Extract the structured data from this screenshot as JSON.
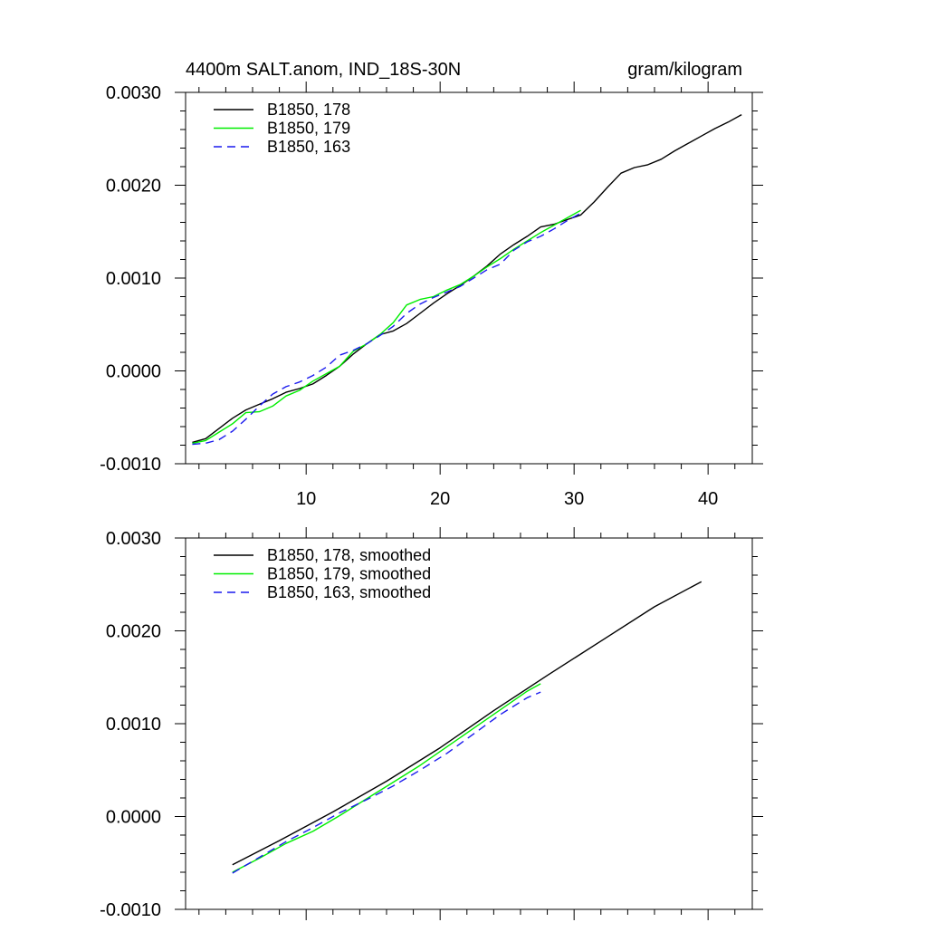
{
  "header": {
    "left_title": "4400m SALT.anom, IND_18S-30N",
    "right_title": "gram/kilogram"
  },
  "chart_data": [
    {
      "type": "line",
      "xlim": [
        1,
        43.3
      ],
      "ylim": [
        -0.001,
        0.003
      ],
      "x_major_ticks": [
        10,
        20,
        30,
        40
      ],
      "x_tick_labels": [
        "10",
        "20",
        "30",
        "40"
      ],
      "x_minor_step": 2,
      "y_major_ticks": [
        -0.001,
        0,
        0.001,
        0.002,
        0.003
      ],
      "y_tick_labels": [
        "-0.0010",
        "0.0000",
        "0.0010",
        "0.0020",
        "0.0030"
      ],
      "y_minor_step": 0.0002,
      "show_x_tick_labels": true,
      "legend_position": "top-left",
      "series": [
        {
          "name": "B1850, 178",
          "color": "#000000",
          "dash": "solid",
          "x": [
            1.5,
            2.5,
            3.5,
            4.5,
            5.5,
            6.5,
            7.5,
            8.5,
            9.5,
            10.5,
            11.5,
            12.5,
            13.5,
            14.5,
            15.5,
            16.5,
            17.5,
            18.5,
            19.5,
            20.5,
            21.5,
            22.5,
            23.5,
            24.5,
            25.5,
            26.5,
            27.5,
            28.5,
            29.5,
            30.5,
            31.5,
            32.5,
            33.5,
            34.5,
            35.5,
            36.5,
            37.5,
            38.5,
            39.5,
            40.5,
            41.5,
            42.5
          ],
          "values": [
            -0.00077,
            -0.00073,
            -0.00062,
            -0.00051,
            -0.00042,
            -0.00036,
            -0.0003,
            -0.00023,
            -0.00019,
            -0.00014,
            -5e-05,
            5e-05,
            0.00018,
            0.00029,
            0.00039,
            0.00043,
            0.00051,
            0.00062,
            0.00073,
            0.00083,
            0.00092,
            0.00102,
            0.00113,
            0.00126,
            0.00136,
            0.00145,
            0.00155,
            0.00158,
            0.00163,
            0.00168,
            0.00182,
            0.00198,
            0.00213,
            0.00219,
            0.00222,
            0.00228,
            0.00237,
            0.00245,
            0.00253,
            0.00261,
            0.00268,
            0.00276
          ]
        },
        {
          "name": "B1850, 179",
          "color": "#00ee00",
          "dash": "solid",
          "x": [
            1.5,
            2.5,
            3.5,
            4.5,
            5.5,
            6.5,
            7.5,
            8.5,
            9.5,
            10.5,
            11.5,
            12.5,
            13.5,
            14.5,
            15.5,
            16.5,
            17.5,
            18.5,
            19.5,
            20.5,
            21.5,
            22.5,
            23.5,
            24.5,
            25.5,
            26.5,
            27.5,
            28.5,
            29.5,
            30.5
          ],
          "values": [
            -0.00078,
            -0.00075,
            -0.00066,
            -0.00057,
            -0.00045,
            -0.00044,
            -0.00038,
            -0.00027,
            -0.00021,
            -0.00011,
            -3e-05,
            5e-05,
            0.00021,
            0.00029,
            0.00039,
            0.00052,
            0.00071,
            0.00077,
            0.0008,
            0.00087,
            0.00093,
            0.00102,
            0.00112,
            0.00121,
            0.00131,
            0.0014,
            0.00149,
            0.00157,
            0.00165,
            0.00173
          ]
        },
        {
          "name": "B1850, 163",
          "color": "#1a1aee",
          "dash": "dashed",
          "x": [
            1.5,
            2.5,
            3.5,
            4.5,
            5.5,
            6.5,
            7.5,
            8.5,
            9.5,
            10.5,
            11.5,
            12.5,
            13.5,
            14.5,
            15.5,
            16.5,
            17.5,
            18.5,
            19.5,
            20.5,
            21.5,
            22.5,
            23.5,
            24.5,
            25.5,
            26.5,
            27.5,
            28.5,
            29.5,
            30.5
          ],
          "values": [
            -0.00079,
            -0.00078,
            -0.00074,
            -0.00065,
            -0.00052,
            -0.00038,
            -0.00025,
            -0.00017,
            -0.00012,
            -5e-05,
            4e-05,
            0.00017,
            0.00022,
            0.00029,
            0.00038,
            0.00048,
            0.00062,
            0.00072,
            0.00079,
            0.00085,
            0.00091,
            0.001,
            0.00109,
            0.00115,
            0.0013,
            0.00139,
            0.00145,
            0.00153,
            0.00162,
            0.0017
          ]
        }
      ]
    },
    {
      "type": "line",
      "xlim": [
        1,
        43.3
      ],
      "ylim": [
        -0.001,
        0.003
      ],
      "x_major_ticks": [
        10,
        20,
        30,
        40
      ],
      "x_tick_labels": [],
      "x_minor_step": 2,
      "y_major_ticks": [
        -0.001,
        0,
        0.001,
        0.002,
        0.003
      ],
      "y_tick_labels": [
        "-0.0010",
        "0.0000",
        "0.0010",
        "0.0020",
        "0.0030"
      ],
      "y_minor_step": 0.0002,
      "show_x_tick_labels": false,
      "legend_position": "top-left",
      "series": [
        {
          "name": "B1850, 178, smoothed",
          "color": "#000000",
          "dash": "solid",
          "x": [
            4.5,
            8,
            12,
            16,
            20,
            24,
            28,
            32,
            36,
            39.5
          ],
          "values": [
            -0.00052,
            -0.00026,
            5e-05,
            0.00038,
            0.00074,
            0.00114,
            0.00152,
            0.00189,
            0.00226,
            0.00253
          ]
        },
        {
          "name": "B1850, 179, smoothed",
          "color": "#00ee00",
          "dash": "solid",
          "x": [
            4.5,
            6.5,
            8.5,
            10.5,
            12.5,
            14.5,
            16.5,
            18.5,
            20.5,
            22.5,
            24.5,
            26.5,
            27.5
          ],
          "values": [
            -0.0006,
            -0.00045,
            -0.00029,
            -0.00016,
            1e-05,
            0.00019,
            0.00037,
            0.00055,
            0.00075,
            0.00095,
            0.00115,
            0.00135,
            0.00143
          ]
        },
        {
          "name": "B1850, 163, smoothed",
          "color": "#1a1aee",
          "dash": "dashed",
          "x": [
            4.5,
            6.5,
            8.5,
            10.5,
            12.5,
            14.5,
            16.5,
            18.5,
            20.5,
            22.5,
            24.5,
            26.5,
            27.5
          ],
          "values": [
            -0.00061,
            -0.00044,
            -0.00027,
            -0.00012,
            4e-05,
            0.00018,
            0.00033,
            0.0005,
            0.00068,
            0.00089,
            0.0011,
            0.00128,
            0.00134
          ]
        }
      ]
    }
  ]
}
